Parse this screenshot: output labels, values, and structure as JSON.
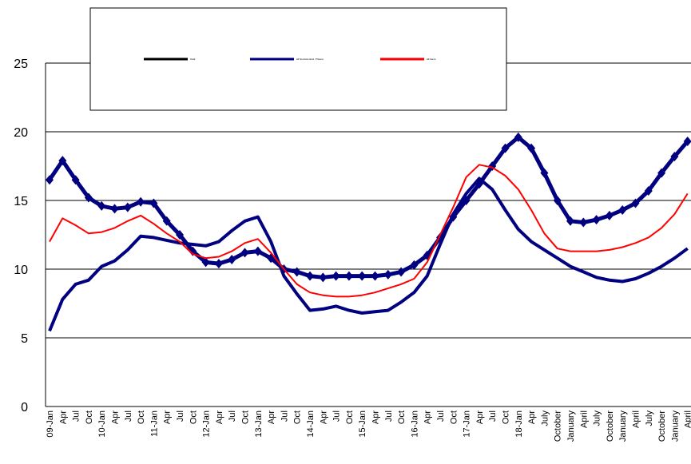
{
  "chart_data": {
    "type": "line",
    "categories": [
      "09-Jan",
      "Apr",
      "Jul",
      "Oct",
      "10-Jan",
      "Apr",
      "Jul",
      "Oct",
      "11-Jan",
      "Apr",
      "Jul",
      "Oct",
      "12-Jan",
      "Apr",
      "Jul",
      "Oct",
      "13-Jan",
      "Apr",
      "Jul",
      "Oct",
      "14-Jan",
      "Apr",
      "Jul",
      "Oct",
      "15-Jan",
      "Apr",
      "Jul",
      "Oct",
      "16-Jan",
      "Apr",
      "Jul",
      "Oct",
      "17-Jan",
      "Apr",
      "Jul",
      "Oct",
      "18-Jan",
      "Apr",
      "July",
      "October",
      "January",
      "April",
      "July",
      "October",
      "January",
      "April",
      "July",
      "October",
      "January",
      "April"
    ],
    "series": [
      {
        "name": "Total",
        "color": "#000080",
        "legend_color": "#000000",
        "marker": "diamond",
        "values": [
          16.5,
          17.9,
          16.5,
          15.2,
          14.6,
          14.4,
          14.5,
          14.9,
          14.8,
          13.5,
          12.5,
          11.3,
          10.5,
          10.4,
          10.7,
          11.2,
          11.3,
          10.8,
          10.0,
          9.8,
          9.5,
          9.4,
          9.5,
          9.5,
          9.5,
          9.5,
          9.6,
          9.8,
          10.3,
          11.0,
          12.3,
          13.8,
          15.0,
          16.2,
          17.5,
          18.8,
          19.6,
          18.8,
          17.0,
          15.0,
          13.5,
          13.4,
          13.6,
          13.9,
          14.3,
          14.8,
          15.7,
          17.0,
          18.2,
          19.3
        ]
      },
      {
        "name": "All Services Excl. Prisons",
        "color": "#000080",
        "values": [
          5.5,
          7.8,
          8.9,
          9.2,
          10.2,
          10.6,
          11.4,
          12.4,
          12.3,
          12.1,
          11.9,
          11.8,
          11.7,
          12.0,
          12.8,
          13.5,
          13.8,
          12.0,
          9.5,
          8.2,
          7.0,
          7.1,
          7.3,
          7.0,
          6.8,
          6.9,
          7.0,
          7.6,
          8.3,
          9.5,
          11.8,
          14.0,
          15.5,
          16.6,
          15.8,
          14.3,
          12.9,
          12.0,
          11.4,
          10.8,
          10.2,
          9.8,
          9.4,
          9.2,
          9.1,
          9.3,
          9.7,
          10.2,
          10.8,
          11.5
        ]
      },
      {
        "name": "All Items",
        "color": "#ff0000",
        "values": [
          12.0,
          13.7,
          13.2,
          12.6,
          12.7,
          13.0,
          13.5,
          13.9,
          13.3,
          12.6,
          12.0,
          11.1,
          10.8,
          10.9,
          11.3,
          11.9,
          12.2,
          11.2,
          10.0,
          8.9,
          8.3,
          8.1,
          8.0,
          8.0,
          8.1,
          8.3,
          8.6,
          8.9,
          9.3,
          10.5,
          12.5,
          14.5,
          16.7,
          17.6,
          17.4,
          16.8,
          15.8,
          14.3,
          12.6,
          11.5,
          11.3,
          11.3,
          11.3,
          11.4,
          11.6,
          11.9,
          12.3,
          13.0,
          14.0,
          15.5
        ]
      }
    ],
    "ylim": [
      0,
      25
    ],
    "yticks": [
      0,
      5,
      10,
      15,
      20,
      25
    ],
    "grid": true
  }
}
